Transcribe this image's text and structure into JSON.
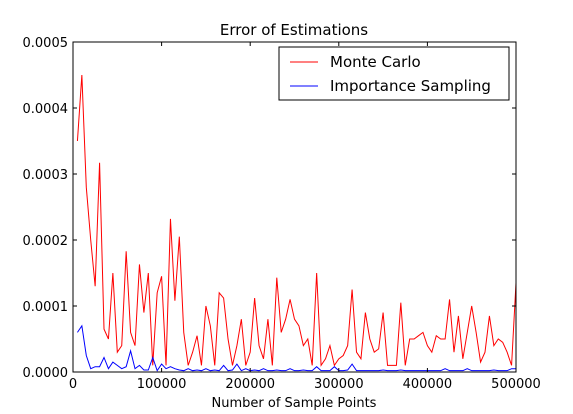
{
  "chart_data": {
    "type": "line",
    "title": "Error of Estimations",
    "xlabel": "Number of Sample Points",
    "ylabel": "",
    "xlim": [
      0,
      500000
    ],
    "ylim": [
      0,
      0.0005
    ],
    "xticks": [
      0,
      100000,
      200000,
      300000,
      400000,
      500000
    ],
    "xtick_labels": [
      "0",
      "100000",
      "200000",
      "300000",
      "400000",
      "500000"
    ],
    "yticks": [
      0,
      0.0001,
      0.0002,
      0.0003,
      0.0004,
      0.0005
    ],
    "ytick_labels": [
      "0.0000",
      "0.0001",
      "0.0002",
      "0.0003",
      "0.0004",
      "0.0005"
    ],
    "grid": false,
    "legend_position": "top-right",
    "x": [
      5000,
      10000,
      15000,
      20000,
      25000,
      30000,
      35000,
      40000,
      45000,
      50000,
      55000,
      60000,
      65000,
      70000,
      75000,
      80000,
      85000,
      90000,
      95000,
      100000,
      105000,
      110000,
      115000,
      120000,
      125000,
      130000,
      135000,
      140000,
      145000,
      150000,
      155000,
      160000,
      165000,
      170000,
      175000,
      180000,
      185000,
      190000,
      195000,
      200000,
      205000,
      210000,
      215000,
      220000,
      225000,
      230000,
      235000,
      240000,
      245000,
      250000,
      255000,
      260000,
      265000,
      270000,
      275000,
      280000,
      285000,
      290000,
      295000,
      300000,
      305000,
      310000,
      315000,
      320000,
      325000,
      330000,
      335000,
      340000,
      345000,
      350000,
      355000,
      360000,
      365000,
      370000,
      375000,
      380000,
      385000,
      390000,
      395000,
      400000,
      405000,
      410000,
      415000,
      420000,
      425000,
      430000,
      435000,
      440000,
      445000,
      450000,
      455000,
      460000,
      465000,
      470000,
      475000,
      480000,
      485000,
      490000,
      495000,
      500000
    ],
    "series": [
      {
        "name": "Monte Carlo",
        "color": "#ff0000",
        "values": [
          0.00035,
          0.00045,
          0.00028,
          0.0002,
          0.00013,
          0.000317,
          6.5e-05,
          5e-05,
          0.00015,
          3e-05,
          4e-05,
          0.000183,
          6e-05,
          4e-05,
          0.000163,
          9e-05,
          0.00015,
          1e-05,
          0.00012,
          0.000145,
          1e-05,
          0.000232,
          0.000108,
          0.000205,
          6e-05,
          1e-05,
          3e-05,
          5.5e-05,
          1e-05,
          0.0001,
          7e-05,
          1e-05,
          0.00012,
          0.000112,
          5e-05,
          1e-05,
          4e-05,
          8e-05,
          1e-05,
          3e-05,
          0.000112,
          4e-05,
          2e-05,
          8e-05,
          1e-05,
          0.000143,
          6e-05,
          8e-05,
          0.00011,
          8e-05,
          7e-05,
          4e-05,
          5e-05,
          1e-05,
          0.00015,
          1e-05,
          2e-05,
          4e-05,
          1e-05,
          2e-05,
          2.5e-05,
          4e-05,
          0.000125,
          3e-05,
          2e-05,
          9e-05,
          5e-05,
          3e-05,
          3.5e-05,
          9e-05,
          1e-05,
          1e-05,
          1e-05,
          0.000105,
          1e-05,
          5e-05,
          5e-05,
          5.5e-05,
          6e-05,
          4e-05,
          3e-05,
          5.5e-05,
          5e-05,
          5e-05,
          0.00011,
          3e-05,
          8.5e-05,
          2e-05,
          6e-05,
          0.0001,
          6e-05,
          1.5e-05,
          3e-05,
          8.5e-05,
          4e-05,
          5e-05,
          4.5e-05,
          3e-05,
          1e-05,
          0.000135
        ]
      },
      {
        "name": "Importance Sampling",
        "color": "#0000ff",
        "values": [
          6e-05,
          7e-05,
          2.5e-05,
          5e-06,
          8e-06,
          8e-06,
          2.2e-05,
          5e-06,
          1.5e-05,
          1e-05,
          5e-06,
          8e-06,
          3.2e-05,
          5e-06,
          1e-05,
          3e-06,
          3e-06,
          2.2e-05,
          2e-06,
          1.2e-05,
          5e-06,
          8e-06,
          5e-06,
          3e-06,
          2e-06,
          5e-06,
          2e-06,
          3e-06,
          2e-06,
          5e-06,
          2e-06,
          3e-06,
          2e-06,
          1e-05,
          2e-06,
          3e-06,
          1.2e-05,
          2e-06,
          5e-06,
          2e-06,
          3e-06,
          2e-06,
          5e-06,
          2e-06,
          2e-06,
          3e-06,
          2e-06,
          2e-06,
          5e-06,
          2e-06,
          2e-06,
          3e-06,
          2e-06,
          2e-06,
          8e-06,
          2e-06,
          2e-06,
          2e-06,
          8e-06,
          2e-06,
          2e-06,
          3e-06,
          1.2e-05,
          2e-06,
          2e-06,
          2e-06,
          2e-06,
          2e-06,
          2e-06,
          3e-06,
          2e-06,
          2e-06,
          2e-06,
          3e-06,
          2e-06,
          2e-06,
          2e-06,
          2e-06,
          2e-06,
          2e-06,
          2e-06,
          2e-06,
          2e-06,
          5e-06,
          2e-06,
          2e-06,
          2e-06,
          2e-06,
          5e-06,
          2e-06,
          2e-06,
          2e-06,
          2e-06,
          2e-06,
          3e-06,
          2e-06,
          2e-06,
          2e-06,
          5e-06,
          5e-06
        ]
      }
    ]
  }
}
